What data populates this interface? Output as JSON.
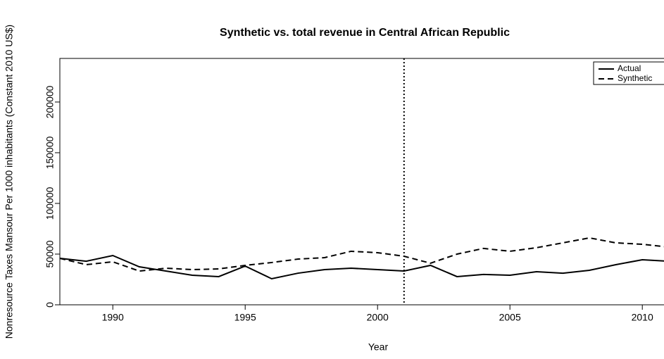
{
  "chart_data": {
    "type": "line",
    "title": "Synthetic vs. total revenue in Central African Republic",
    "x_label": "Year",
    "y_label": "Nonresource Taxes Mansour Per 1000 inhabitants (Constant 2010 US$)",
    "x": [
      1988,
      1989,
      1990,
      1991,
      1992,
      1993,
      1994,
      1995,
      1996,
      1997,
      1998,
      1999,
      2000,
      2001,
      2002,
      2003,
      2004,
      2005,
      2006,
      2007,
      2008,
      2009,
      2010,
      2011
    ],
    "series": [
      {
        "name": "Actual",
        "color": "#000000",
        "linestyle": "solid",
        "values": [
          45800,
          43000,
          48600,
          37500,
          33300,
          29200,
          27800,
          38200,
          25700,
          31200,
          34700,
          36100,
          34700,
          33300,
          38900,
          27800,
          29900,
          29200,
          32600,
          31200,
          34000,
          39600,
          44400,
          43000
        ]
      },
      {
        "name": "Synthetic",
        "color": "#000000",
        "linestyle": "dashed",
        "values": [
          45800,
          39600,
          42400,
          33300,
          36100,
          34700,
          35400,
          38900,
          41700,
          45100,
          46500,
          52800,
          51400,
          47900,
          41000,
          50000,
          55600,
          52800,
          56300,
          61100,
          66000,
          61100,
          59700,
          56900
        ]
      }
    ],
    "vline": 2001,
    "xlim": [
      1988,
      2011.2
    ],
    "xticks": [
      1990,
      1995,
      2000,
      2005,
      2010
    ],
    "ylim": [
      0,
      243000
    ],
    "yticks": [
      0,
      50000,
      100000,
      150000,
      200000
    ],
    "legend": "top-right"
  }
}
